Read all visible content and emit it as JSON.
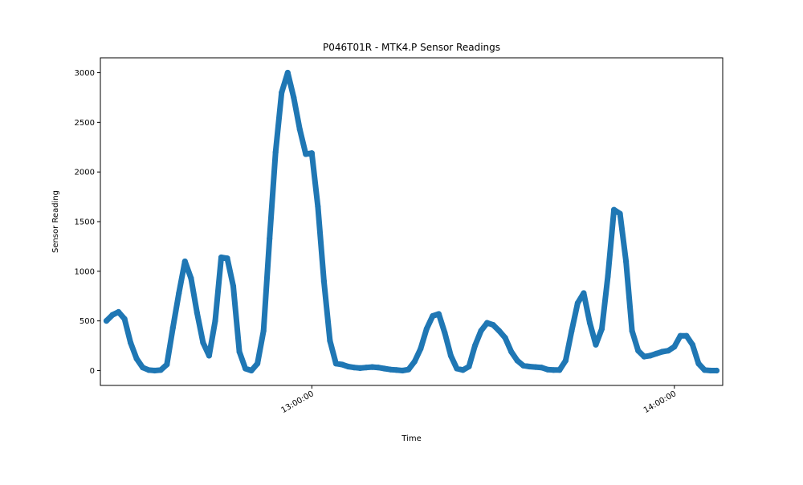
{
  "chart_data": {
    "type": "line",
    "title": "P046T01R - MTK4.P Sensor Readings",
    "xlabel": "Time",
    "ylabel": "Sensor Reading",
    "x_axis": {
      "kind": "time",
      "range": [
        "12:25:00",
        "14:08:00"
      ],
      "tick_labels": [
        "13:00:00",
        "14:00:00"
      ]
    },
    "y_axis": {
      "range": [
        -150,
        3150
      ],
      "tick_values": [
        0,
        500,
        1000,
        1500,
        2000,
        2500,
        3000
      ],
      "tick_labels": [
        "0",
        "500",
        "1000",
        "1500",
        "2000",
        "2500",
        "3000"
      ]
    },
    "grid": false,
    "legend": "none",
    "color": "#1f77b4",
    "series": [
      {
        "x": [
          "12:26:00",
          "12:27:00",
          "12:28:00",
          "12:29:00",
          "12:30:00",
          "12:31:00",
          "12:32:00",
          "12:33:00",
          "12:34:00",
          "12:35:00",
          "12:36:00",
          "12:37:00",
          "12:38:00",
          "12:39:00",
          "12:40:00",
          "12:41:00",
          "12:42:00",
          "12:43:00",
          "12:44:00",
          "12:45:00",
          "12:46:00",
          "12:47:00",
          "12:48:00",
          "12:49:00",
          "12:50:00",
          "12:51:00",
          "12:52:00",
          "12:53:00",
          "12:54:00",
          "12:55:00",
          "12:56:00",
          "12:57:00",
          "12:58:00",
          "12:59:00",
          "13:00:00",
          "13:01:00",
          "13:02:00",
          "13:03:00",
          "13:04:00",
          "13:05:00",
          "13:06:00",
          "13:07:00",
          "13:08:00",
          "13:09:00",
          "13:10:00",
          "13:11:00",
          "13:12:00",
          "13:13:00",
          "13:14:00",
          "13:15:00",
          "13:16:00",
          "13:17:00",
          "13:18:00",
          "13:19:00",
          "13:20:00",
          "13:21:00",
          "13:22:00",
          "13:23:00",
          "13:24:00",
          "13:25:00",
          "13:26:00",
          "13:27:00",
          "13:28:00",
          "13:29:00",
          "13:30:00",
          "13:31:00",
          "13:32:00",
          "13:33:00",
          "13:34:00",
          "13:35:00",
          "13:36:00",
          "13:37:00",
          "13:38:00",
          "13:39:00",
          "13:40:00",
          "13:41:00",
          "13:42:00",
          "13:43:00",
          "13:44:00",
          "13:45:00",
          "13:46:00",
          "13:47:00",
          "13:48:00",
          "13:49:00",
          "13:50:00",
          "13:51:00",
          "13:52:00",
          "13:53:00",
          "13:54:00",
          "13:55:00",
          "13:56:00",
          "13:57:00",
          "13:58:00",
          "13:59:00",
          "14:00:00",
          "14:01:00",
          "14:02:00",
          "14:03:00",
          "14:04:00",
          "14:05:00",
          "14:06:00",
          "14:07:00"
        ],
        "y": [
          500,
          560,
          590,
          520,
          280,
          120,
          30,
          5,
          0,
          5,
          60,
          430,
          780,
          1100,
          930,
          580,
          280,
          150,
          500,
          1140,
          1130,
          850,
          190,
          20,
          0,
          70,
          400,
          1330,
          2200,
          2800,
          3000,
          2750,
          2430,
          2180,
          2190,
          1650,
          900,
          300,
          70,
          60,
          40,
          30,
          25,
          30,
          35,
          30,
          20,
          10,
          5,
          0,
          10,
          90,
          220,
          420,
          550,
          570,
          380,
          150,
          20,
          5,
          40,
          250,
          400,
          480,
          460,
          400,
          330,
          190,
          100,
          50,
          40,
          35,
          30,
          10,
          5,
          5,
          100,
          400,
          680,
          780,
          480,
          260,
          420,
          950,
          1620,
          1580,
          1100,
          400,
          200,
          140,
          150,
          170,
          190,
          200,
          240,
          350,
          350,
          260,
          70,
          5,
          0,
          0
        ]
      }
    ]
  }
}
